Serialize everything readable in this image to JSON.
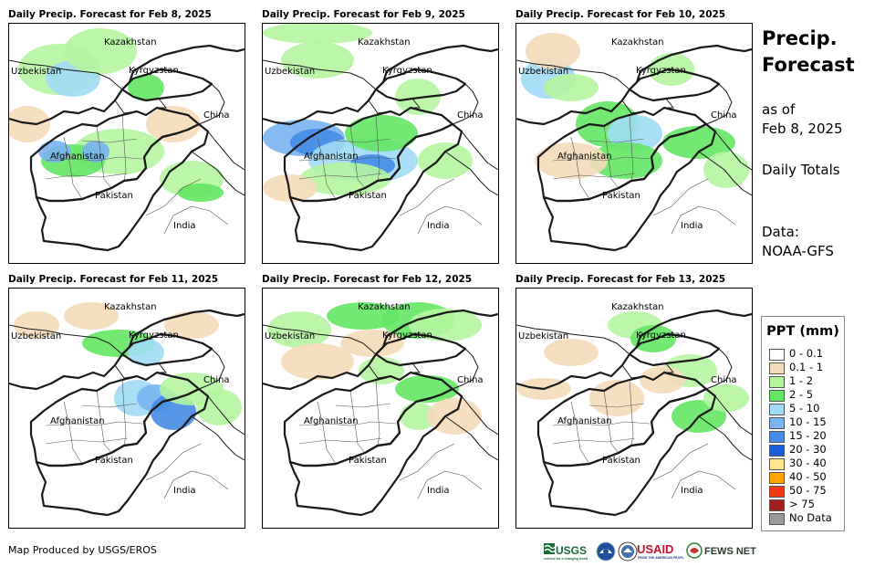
{
  "panels": [
    {
      "title": "Daily Precip. Forecast for Feb 8, 2025"
    },
    {
      "title": "Daily Precip. Forecast for Feb 9, 2025"
    },
    {
      "title": "Daily Precip. Forecast for Feb 10, 2025"
    },
    {
      "title": "Daily Precip. Forecast for Feb 11, 2025"
    },
    {
      "title": "Daily Precip. Forecast for Feb 12, 2025"
    },
    {
      "title": "Daily Precip. Forecast for Feb 13, 2025"
    }
  ],
  "country_labels": {
    "kazakhstan": "Kazakhstan",
    "uzbekistan": "Uzbekistan",
    "kyrgyzstan": "Kyrgyzstan",
    "china": "China",
    "afghanistan": "Afghanistan",
    "pakistan": "Pakistan",
    "india": "India"
  },
  "side": {
    "title_line1": "Precip.",
    "title_line2": "Forecast",
    "asof_line1": "as of",
    "asof_line2": "Feb 8, 2025",
    "totals": "Daily Totals",
    "data_line1": "Data:",
    "data_line2": "NOAA-GFS"
  },
  "legend": {
    "title": "PPT (mm)",
    "items": [
      {
        "label": "0 - 0.1",
        "color": "#ffffff"
      },
      {
        "label": "0.1 - 1",
        "color": "#f5dcb8"
      },
      {
        "label": "1 - 2",
        "color": "#b4f5a0"
      },
      {
        "label": "2 - 5",
        "color": "#64e664"
      },
      {
        "label": "5 - 10",
        "color": "#a0dcf5"
      },
      {
        "label": "10 - 15",
        "color": "#78b4f0"
      },
      {
        "label": "15 - 20",
        "color": "#468ce6"
      },
      {
        "label": "20 - 30",
        "color": "#1e5adc"
      },
      {
        "label": "30 - 40",
        "color": "#ffe68c"
      },
      {
        "label": "40 - 50",
        "color": "#ffa500"
      },
      {
        "label": "50 - 75",
        "color": "#f03c14"
      },
      {
        "label": "> 75",
        "color": "#a01e1e"
      },
      {
        "label": "No Data",
        "color": "#999999"
      }
    ]
  },
  "footer": {
    "credit": "Map Produced by USGS/EROS"
  },
  "logos": {
    "usgs": "USGS",
    "usaid": "USAID",
    "fewsnet": "FEWS NET"
  }
}
